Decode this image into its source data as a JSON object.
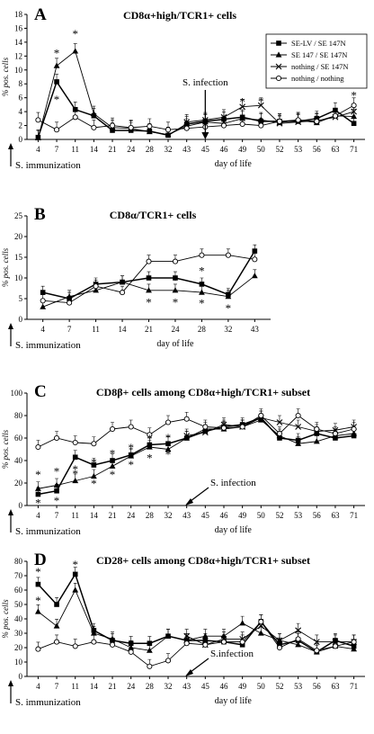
{
  "chart_data": [
    {
      "type": "line",
      "panel_letter": "A",
      "title": "CD8α+high/TCR1+ cells",
      "ylabel": "% pos. cells",
      "xlabel": "day of life",
      "ylim": [
        0,
        18
      ],
      "yticks": [
        0,
        2,
        4,
        6,
        8,
        10,
        12,
        14,
        16,
        18
      ],
      "categories": [
        "4",
        "7",
        "11",
        "14",
        "21",
        "24",
        "28",
        "32",
        "43",
        "45",
        "46",
        "49",
        "50",
        "52",
        "53",
        "56",
        "63",
        "71"
      ],
      "legend_position": "top-right",
      "series": [
        {
          "name": "SE-LV / SE 147N",
          "marker": "square",
          "values": [
            0.3,
            8.3,
            4.3,
            3.4,
            1.3,
            1.3,
            1.2,
            0.6,
            2.2,
            2.6,
            2.9,
            3.2,
            2.6,
            2.6,
            2.6,
            3.0,
            4.2,
            2.3
          ]
        },
        {
          "name": "SE 147 / SE 147N",
          "marker": "triangle",
          "values": [
            0.2,
            10.6,
            12.7,
            3.7,
            1.7,
            1.6,
            1.1,
            0.7,
            1.9,
            2.5,
            2.3,
            3.0,
            2.8,
            2.4,
            2.8,
            2.4,
            3.4,
            3.3
          ]
        },
        {
          "name": "nothing / SE 147N",
          "marker": "x",
          "values": [
            null,
            null,
            null,
            null,
            null,
            null,
            null,
            null,
            2.5,
            2.8,
            3.2,
            4.7,
            4.9,
            2.3,
            2.5,
            2.7,
            3.2,
            4.0
          ]
        },
        {
          "name": "nothing / nothing",
          "marker": "circle",
          "values": [
            2.8,
            1.4,
            3.2,
            1.7,
            2.0,
            1.7,
            1.9,
            1.4,
            1.6,
            1.8,
            2.0,
            2.2,
            2.0,
            2.6,
            2.8,
            2.6,
            3.4,
            4.9
          ]
        }
      ],
      "stars": [
        [
          1,
          12.5
        ],
        [
          1,
          5.8
        ],
        [
          2,
          15.3
        ],
        [
          11,
          5.5
        ],
        [
          12,
          5.6
        ],
        [
          17,
          6.4
        ]
      ],
      "annotations": [
        {
          "text": "S. infection",
          "at_category": 9
        }
      ],
      "start_label": "S. immunization"
    },
    {
      "type": "line",
      "panel_letter": "B",
      "title": "CD8α/TCR1+ cells",
      "ylabel": "% pos. cells",
      "xlabel": "day of life",
      "ylim": [
        0,
        25
      ],
      "yticks": [
        0,
        5,
        10,
        15,
        20,
        25
      ],
      "categories": [
        "4",
        "7",
        "11",
        "14",
        "21",
        "24",
        "28",
        "32",
        "43"
      ],
      "series": [
        {
          "name": "SE-LV / SE 147N",
          "marker": "square",
          "values": [
            6.5,
            5.0,
            8.5,
            9.0,
            10.0,
            10.0,
            8.5,
            6.0,
            16.5
          ]
        },
        {
          "name": "SE 147 / SE 147N",
          "marker": "triangle",
          "values": [
            3.0,
            5.5,
            7.0,
            9.0,
            7.0,
            7.0,
            6.5,
            5.5,
            10.5
          ]
        },
        {
          "name": "nothing / nothing",
          "marker": "circle",
          "values": [
            4.5,
            4.0,
            8.0,
            6.5,
            14.0,
            14.0,
            15.5,
            15.5,
            14.5
          ]
        }
      ],
      "stars": [
        [
          4,
          4.2
        ],
        [
          5,
          4.2
        ],
        [
          5,
          9.6
        ],
        [
          6,
          11.8
        ],
        [
          6,
          4.0
        ],
        [
          7,
          2.8
        ]
      ],
      "start_label": "S. immunization"
    },
    {
      "type": "line",
      "panel_letter": "C",
      "title": "CD8β+ cells among CD8α+high/TCR1+ subset",
      "ylabel": "% pos. cells",
      "xlabel": "day of life",
      "ylim": [
        0,
        100
      ],
      "yticks": [
        0,
        20,
        40,
        60,
        80,
        100
      ],
      "categories": [
        "4",
        "7",
        "11",
        "14",
        "21",
        "24",
        "28",
        "32",
        "43",
        "45",
        "46",
        "49",
        "50",
        "52",
        "53",
        "56",
        "63",
        "71"
      ],
      "series": [
        {
          "name": "SE-LV / SE 147N",
          "marker": "square",
          "values": [
            10,
            13,
            43,
            36,
            40,
            45,
            54,
            55,
            60,
            66,
            70,
            72,
            78,
            60,
            58,
            64,
            60,
            62
          ]
        },
        {
          "name": "SE 147 / SE 147N",
          "marker": "triangle",
          "values": [
            15,
            18,
            22,
            26,
            35,
            44,
            52,
            50,
            60,
            68,
            68,
            70,
            76,
            62,
            55,
            57,
            62,
            64
          ]
        },
        {
          "name": "nothing / SE 147N",
          "marker": "x",
          "values": [
            null,
            null,
            null,
            null,
            null,
            null,
            null,
            null,
            62,
            65,
            72,
            70,
            78,
            74,
            70,
            66,
            67,
            70
          ]
        },
        {
          "name": "nothing / nothing",
          "marker": "circle",
          "values": [
            52,
            60,
            56,
            55,
            68,
            70,
            63,
            74,
            77,
            70,
            69,
            70,
            80,
            64,
            80,
            68,
            64,
            68
          ]
        }
      ],
      "stars": [
        [
          0,
          28
        ],
        [
          0,
          3
        ],
        [
          1,
          31
        ],
        [
          1,
          5
        ],
        [
          2,
          29
        ],
        [
          2,
          33
        ],
        [
          3,
          39
        ],
        [
          3,
          20
        ],
        [
          4,
          47
        ],
        [
          4,
          28
        ],
        [
          5,
          52
        ],
        [
          5,
          37
        ],
        [
          6,
          60
        ],
        [
          6,
          43
        ],
        [
          7,
          61
        ],
        [
          7,
          46
        ]
      ],
      "annotations": [
        {
          "text": "S. infection",
          "at_category": 8.5
        }
      ],
      "start_label": "S. immunization"
    },
    {
      "type": "line",
      "panel_letter": "D",
      "title": "CD28+ cells among CD8α+high/TCR1+ subset",
      "ylabel": "% pos. cells",
      "xlabel": "day of life",
      "ylim": [
        0,
        80
      ],
      "yticks": [
        0,
        10,
        20,
        30,
        40,
        50,
        60,
        70,
        80
      ],
      "categories": [
        "4",
        "7",
        "11",
        "14",
        "21",
        "24",
        "28",
        "32",
        "43",
        "45",
        "46",
        "49",
        "50",
        "52",
        "53",
        "56",
        "63",
        "71"
      ],
      "series": [
        {
          "name": "SE-LV / SE 147N",
          "marker": "square",
          "values": [
            64,
            50,
            71,
            32,
            25,
            23,
            23,
            28,
            25,
            25,
            24,
            22,
            38,
            22,
            25,
            17,
            25,
            21
          ]
        },
        {
          "name": "SE 147 / SE 147N",
          "marker": "triangle",
          "values": [
            45,
            35,
            60,
            30,
            26,
            20,
            18,
            28,
            25,
            28,
            28,
            37,
            30,
            25,
            22,
            17,
            21,
            19
          ]
        },
        {
          "name": "nothing / SE 147N",
          "marker": "x",
          "values": [
            null,
            null,
            null,
            null,
            null,
            null,
            null,
            null,
            28,
            22,
            26,
            26,
            35,
            25,
            32,
            24,
            24,
            24
          ]
        },
        {
          "name": "nothing / nothing",
          "marker": "circle",
          "values": [
            19,
            24,
            21,
            24,
            22,
            17,
            7,
            11,
            23,
            22,
            24,
            24,
            38,
            20,
            26,
            18,
            21,
            24
          ]
        }
      ],
      "stars": [
        [
          0,
          73
        ],
        [
          0,
          53
        ],
        [
          2,
          78
        ]
      ],
      "annotations": [
        {
          "text": "S.infection",
          "at_category": 8.5
        }
      ],
      "start_label": "S. immunization"
    }
  ]
}
